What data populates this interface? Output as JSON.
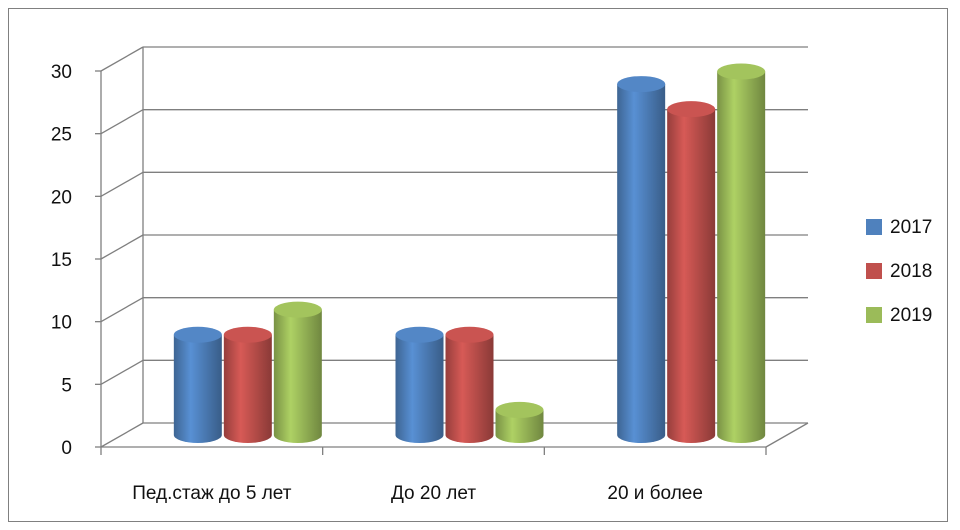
{
  "chart_data": {
    "type": "bar",
    "categories": [
      "Пед.стаж до 5 лет",
      "До 20 лет",
      "20 и более"
    ],
    "series": [
      {
        "name": "2017",
        "values": [
          8,
          8,
          28
        ],
        "color": "#4f81bd"
      },
      {
        "name": "2018",
        "values": [
          8,
          8,
          26
        ],
        "color": "#c0504d"
      },
      {
        "name": "2019",
        "values": [
          10,
          2,
          29
        ],
        "color": "#9bbb59"
      }
    ],
    "yticks": [
      "0",
      "5",
      "10",
      "15",
      "20",
      "25",
      "30"
    ],
    "ylim": [
      0,
      30
    ],
    "grid": true,
    "legend": "right",
    "style": "3d-cylinder"
  }
}
